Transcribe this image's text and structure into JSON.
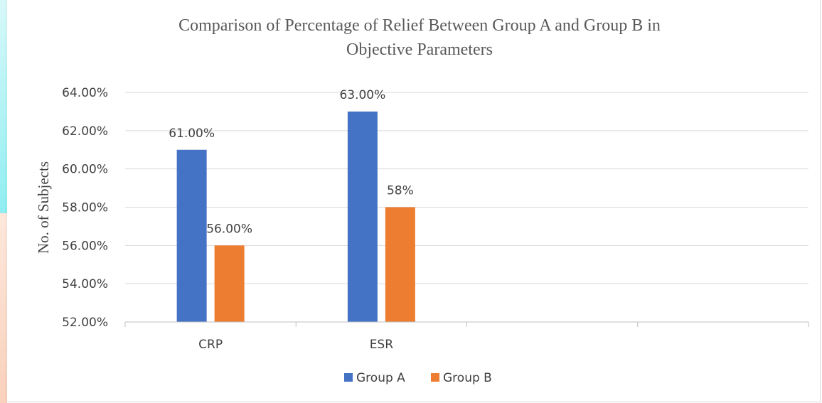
{
  "chart_data": {
    "type": "bar",
    "title": "Comparison of Percentage of Relief Between Group A and Group B in Objective Parameters",
    "title_lines": [
      "Comparison of Percentage of Relief Between Group A and Group B in",
      "Objective Parameters"
    ],
    "xlabel": "",
    "ylabel": "No. of Subjects",
    "categories": [
      "CRP",
      "ESR",
      "",
      ""
    ],
    "series": [
      {
        "name": "Group A",
        "color": "#4472C4",
        "values": [
          61,
          63,
          null,
          null
        ],
        "labels": [
          "61.00%",
          "63.00%",
          "",
          ""
        ]
      },
      {
        "name": "Group B",
        "color": "#ED7D31",
        "values": [
          56,
          58,
          null,
          null
        ],
        "labels": [
          "56.00%",
          "58%",
          "",
          ""
        ]
      }
    ],
    "ylim": [
      52,
      64
    ],
    "yticks": [
      52,
      54,
      56,
      58,
      60,
      62,
      64
    ],
    "ytick_labels": [
      "52.00%",
      "54.00%",
      "56.00%",
      "58.00%",
      "60.00%",
      "62.00%",
      "64.00%"
    ],
    "grid": true,
    "legend_position": "bottom"
  },
  "colors": {
    "grid": "#d9d9d9",
    "axis": "#bfbfbf",
    "watermark_cyan": "#34e0e6",
    "watermark_orange": "#f4a37a"
  }
}
